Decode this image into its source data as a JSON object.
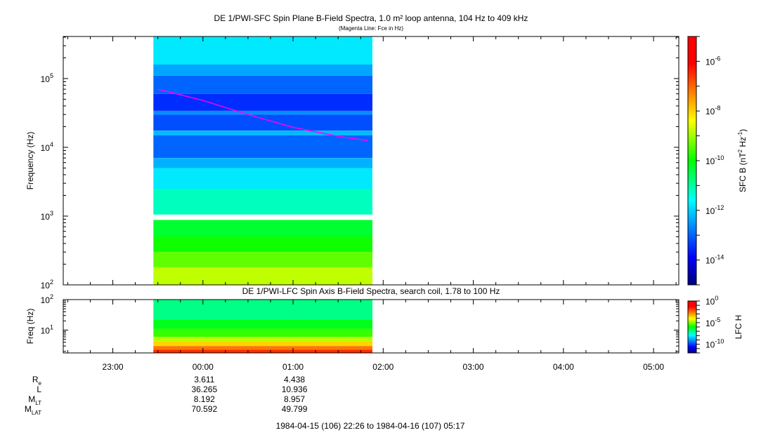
{
  "chart_data": [
    {
      "type": "heatmap",
      "title": "DE 1/PWI-SFC  Spin Plane B-Field Spectra, 1.0 m² loop antenna, 104 Hz to 409 kHz",
      "subtitle": "(Magenta Line: Fce in Hz)",
      "ylabel": "Frequency (Hz)",
      "yscale": "log",
      "ylim": [
        100,
        409000
      ],
      "ytick_labels": [
        {
          "base": "10",
          "exp": "2"
        },
        {
          "base": "10",
          "exp": "3"
        },
        {
          "base": "10",
          "exp": "4"
        },
        {
          "base": "10",
          "exp": "5"
        }
      ],
      "yticks": [
        100,
        1000,
        10000,
        100000
      ],
      "colorbar": {
        "label_main": "SFC B (nT",
        "label_sup1": "2",
        "label_mid": " Hz",
        "label_sup2": "-1",
        "label_end": ")",
        "scale": "log",
        "range": [
          1e-15,
          1e-05
        ],
        "tick_labels": [
          {
            "base": "10",
            "exp": "-6"
          },
          {
            "base": "10",
            "exp": "-8"
          },
          {
            "base": "10",
            "exp": "-10"
          },
          {
            "base": "10",
            "exp": "-12"
          },
          {
            "base": "10",
            "exp": "-14"
          }
        ],
        "ticks": [
          -6,
          -8,
          -10,
          -12,
          -14
        ]
      },
      "data_start_hour": -0.55,
      "data_end_hour": 1.88,
      "gap_hz": [
        880,
        1050
      ],
      "fce_line": {
        "color": "#ff00ff",
        "points": [
          [
            -0.5,
            70000
          ],
          [
            0,
            48000
          ],
          [
            0.5,
            30000
          ],
          [
            1.0,
            19500
          ],
          [
            1.5,
            14500
          ],
          [
            1.83,
            12500
          ]
        ]
      },
      "spectrum_bands": [
        {
          "hz": [
            100,
            180
          ],
          "log_intensity": -8.8
        },
        {
          "hz": [
            180,
            300
          ],
          "log_intensity": -9.4
        },
        {
          "hz": [
            300,
            500
          ],
          "log_intensity": -9.9
        },
        {
          "hz": [
            500,
            880
          ],
          "log_intensity": -10.3
        },
        {
          "hz": [
            1050,
            2500
          ],
          "log_intensity": -11.2
        },
        {
          "hz": [
            2500,
            5000
          ],
          "log_intensity": -11.8
        },
        {
          "hz": [
            5000,
            7000
          ],
          "log_intensity": -12.3
        },
        {
          "hz": [
            7000,
            15000
          ],
          "log_intensity": -13.0
        },
        {
          "hz": [
            15000,
            17500
          ],
          "log_intensity": -12.2
        },
        {
          "hz": [
            17500,
            30000
          ],
          "log_intensity": -13.2
        },
        {
          "hz": [
            30000,
            34000
          ],
          "log_intensity": -12.6
        },
        {
          "hz": [
            34000,
            60000
          ],
          "log_intensity": -13.5
        },
        {
          "hz": [
            60000,
            110000
          ],
          "log_intensity": -13.0
        },
        {
          "hz": [
            110000,
            160000
          ],
          "log_intensity": -12.4
        },
        {
          "hz": [
            160000,
            409000
          ],
          "log_intensity": -11.8
        }
      ]
    },
    {
      "type": "heatmap",
      "title": "DE 1/PWI-LFC  Spin Axis B-Field Spectra, search coil, 1.78 to 100 Hz",
      "ylabel": "Freq (Hz)",
      "yscale": "log",
      "ylim": [
        1.78,
        100
      ],
      "ytick_labels": [
        {
          "base": "10",
          "exp": "1"
        },
        {
          "base": "10",
          "exp": "2"
        }
      ],
      "yticks": [
        10,
        100
      ],
      "colorbar": {
        "label": "LFC H",
        "scale": "log",
        "range": [
          1e-12,
          1
        ],
        "tick_labels": [
          {
            "base": "10",
            "exp": "0"
          },
          {
            "base": "10",
            "exp": "-5"
          },
          {
            "base": "10",
            "exp": "-10"
          }
        ],
        "ticks": [
          0,
          -5,
          -10
        ]
      },
      "data_start_hour": -0.55,
      "data_end_hour": 1.88,
      "spectrum_bands": [
        {
          "hz": [
            1.78,
            2.3
          ],
          "log_intensity": -1.8
        },
        {
          "hz": [
            2.3,
            3.0
          ],
          "log_intensity": -2.6
        },
        {
          "hz": [
            3.0,
            4.2
          ],
          "log_intensity": -3.6
        },
        {
          "hz": [
            4.2,
            6.0
          ],
          "log_intensity": -4.6
        },
        {
          "hz": [
            6.0,
            11.0
          ],
          "log_intensity": -5.6
        },
        {
          "hz": [
            11.0,
            22.0
          ],
          "log_intensity": -6.2
        },
        {
          "hz": [
            22.0,
            100
          ],
          "log_intensity": -7.0
        }
      ]
    }
  ],
  "time_axis": {
    "xlim_hours": [
      -1.55,
      5.28
    ],
    "tick_hours": [
      -1,
      0,
      1,
      2,
      3,
      4,
      5
    ],
    "tick_labels": [
      "23:00",
      "00:00",
      "01:00",
      "02:00",
      "03:00",
      "04:00",
      "05:00"
    ],
    "minor_step_hours": 0.25
  },
  "ephemeris": [
    {
      "label": "R",
      "sub": "e",
      "values": [
        "3.611",
        "4.438"
      ]
    },
    {
      "label": "L",
      "sub": "",
      "values": [
        "36.265",
        "10.936"
      ]
    },
    {
      "label": "M",
      "sub": "LT",
      "values": [
        "8.192",
        "8.957"
      ]
    },
    {
      "label": "M",
      "sub": "LAT",
      "values": [
        "70.592",
        "49.799"
      ]
    }
  ],
  "ephemeris_hours": [
    0,
    1
  ],
  "time_range": "1984-04-15 (106) 22:26 to 1984-04-16 (107) 05:17"
}
